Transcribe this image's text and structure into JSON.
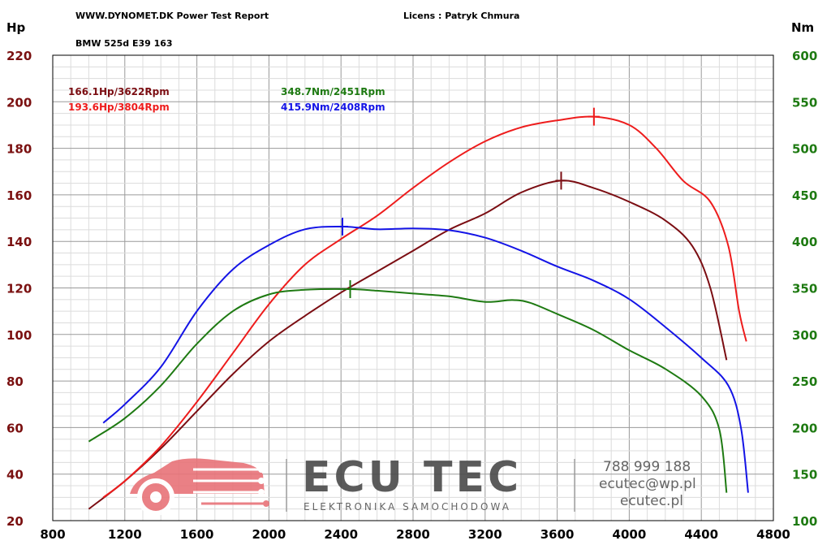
{
  "header": {
    "report_title": "WWW.DYNOMET.DK  Power Test Report",
    "license": "Licens :  Patryk Chmura",
    "car": "BMW 525d E39 163"
  },
  "axes": {
    "left_unit": "Hp",
    "right_unit": "Nm",
    "x_ticks": [
      "800",
      "1200",
      "1600",
      "2000",
      "2400",
      "2800",
      "3200",
      "3600",
      "4000",
      "4400",
      "4800"
    ],
    "left_ticks": [
      "220",
      "200",
      "180",
      "160",
      "140",
      "120",
      "100",
      "80",
      "60",
      "40",
      "20"
    ],
    "right_ticks": [
      "600",
      "550",
      "500",
      "450",
      "400",
      "350",
      "300",
      "250",
      "200",
      "150",
      "100"
    ]
  },
  "peaks": {
    "hp_before": "166.1Hp/3622Rpm",
    "hp_after": "193.6Hp/3804Rpm",
    "nm_before": "348.7Nm/2451Rpm",
    "nm_after": "415.9Nm/2408Rpm"
  },
  "watermark": {
    "brand": "ECU TEC",
    "tagline": "ELEKTRONIKA SAMOCHODOWA",
    "phone": "788 999 188",
    "email": "ecutec@wp.pl",
    "site": "ecutec.pl"
  },
  "colors": {
    "hp_before": "#7b0d12",
    "hp_after": "#ee1c1c",
    "nm_before": "#1e7a12",
    "nm_after": "#1414e6",
    "logo_red": "#e87378"
  },
  "chart_data": {
    "type": "line",
    "title": "",
    "xlabel": "",
    "ylabel": "Hp",
    "y2label": "Nm",
    "xlim": [
      800,
      4800
    ],
    "ylim": [
      20,
      220
    ],
    "y2lim": [
      100,
      600
    ],
    "grid": true,
    "series": [
      {
        "name": "166.1Hp/3622Rpm",
        "axis": "left",
        "points": [
          [
            1000,
            25
          ],
          [
            1200,
            37
          ],
          [
            1400,
            51
          ],
          [
            1600,
            67
          ],
          [
            1800,
            83
          ],
          [
            2000,
            97
          ],
          [
            2200,
            108
          ],
          [
            2400,
            118
          ],
          [
            2600,
            127
          ],
          [
            2800,
            136
          ],
          [
            3000,
            145
          ],
          [
            3200,
            152
          ],
          [
            3400,
            161
          ],
          [
            3622,
            166.1
          ],
          [
            3800,
            163
          ],
          [
            4000,
            157
          ],
          [
            4200,
            149
          ],
          [
            4350,
            138
          ],
          [
            4450,
            120
          ],
          [
            4540,
            89
          ]
        ]
      },
      {
        "name": "193.6Hp/3804Rpm",
        "axis": "left",
        "points": [
          [
            1080,
            30
          ],
          [
            1200,
            37
          ],
          [
            1400,
            52
          ],
          [
            1600,
            71
          ],
          [
            1800,
            92
          ],
          [
            2000,
            113
          ],
          [
            2200,
            130
          ],
          [
            2400,
            141
          ],
          [
            2600,
            151
          ],
          [
            2800,
            163
          ],
          [
            3000,
            174
          ],
          [
            3200,
            183
          ],
          [
            3400,
            189
          ],
          [
            3600,
            192
          ],
          [
            3804,
            193.6
          ],
          [
            4000,
            190
          ],
          [
            4150,
            180
          ],
          [
            4300,
            166
          ],
          [
            4450,
            157
          ],
          [
            4550,
            138
          ],
          [
            4610,
            110
          ],
          [
            4650,
            97
          ]
        ]
      },
      {
        "name": "348.7Nm/2451Rpm",
        "axis": "right",
        "points": [
          [
            1000,
            185
          ],
          [
            1200,
            210
          ],
          [
            1400,
            245
          ],
          [
            1600,
            290
          ],
          [
            1800,
            325
          ],
          [
            2000,
            343
          ],
          [
            2200,
            348
          ],
          [
            2451,
            348.7
          ],
          [
            2600,
            347
          ],
          [
            2800,
            344
          ],
          [
            3000,
            341
          ],
          [
            3200,
            335
          ],
          [
            3350,
            337
          ],
          [
            3450,
            334
          ],
          [
            3600,
            322
          ],
          [
            3800,
            305
          ],
          [
            4000,
            283
          ],
          [
            4200,
            263
          ],
          [
            4400,
            234
          ],
          [
            4500,
            198
          ],
          [
            4540,
            130
          ]
        ]
      },
      {
        "name": "415.9Nm/2408Rpm",
        "axis": "right",
        "points": [
          [
            1080,
            205
          ],
          [
            1200,
            225
          ],
          [
            1400,
            265
          ],
          [
            1600,
            325
          ],
          [
            1800,
            370
          ],
          [
            2000,
            396
          ],
          [
            2200,
            413
          ],
          [
            2408,
            415.9
          ],
          [
            2600,
            413
          ],
          [
            2800,
            414
          ],
          [
            3000,
            412
          ],
          [
            3200,
            404
          ],
          [
            3400,
            390
          ],
          [
            3600,
            373
          ],
          [
            3800,
            358
          ],
          [
            4000,
            338
          ],
          [
            4200,
            308
          ],
          [
            4400,
            275
          ],
          [
            4550,
            245
          ],
          [
            4620,
            200
          ],
          [
            4660,
            130
          ]
        ]
      }
    ],
    "peak_markers": [
      {
        "series": "166.1Hp/3622Rpm",
        "x": 3622,
        "y": 166.1
      },
      {
        "series": "193.6Hp/3804Rpm",
        "x": 3804,
        "y": 193.6
      },
      {
        "series": "348.7Nm/2451Rpm",
        "x": 2451,
        "y": 348.7
      },
      {
        "series": "415.9Nm/2408Rpm",
        "x": 2408,
        "y": 415.9
      }
    ]
  }
}
